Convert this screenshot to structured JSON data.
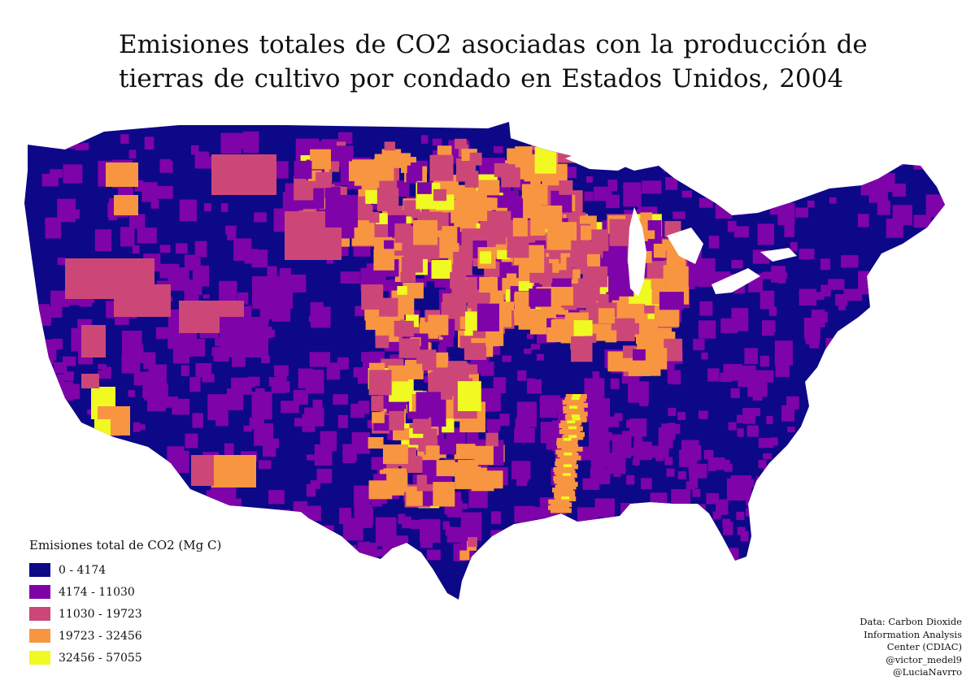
{
  "title_lines": [
    "Emisiones totales de CO2 asociadas con la producción de",
    "tierras de cultivo por condado en Estados Unidos, 2004"
  ],
  "legend": {
    "title": "Emisiones total de CO2 (Mg C)",
    "items": [
      {
        "label": "0 - 4174",
        "color": "#0d0887",
        "min": 0,
        "max": 4174
      },
      {
        "label": "4174 - 11030",
        "color": "#7e03a8",
        "min": 4174,
        "max": 11030
      },
      {
        "label": "11030 - 19723",
        "color": "#cc4778",
        "min": 11030,
        "max": 19723
      },
      {
        "label": "19723 - 32456",
        "color": "#f89540",
        "min": 19723,
        "max": 32456
      },
      {
        "label": "32456 - 57055",
        "color": "#f0f921",
        "min": 32456,
        "max": 57055
      }
    ]
  },
  "credits": [
    "Data: Carbon Dioxide",
    "Information Analysis",
    "Center (CDIAC)",
    "@victor_medel9",
    "@LuciaNavrro"
  ],
  "colors": {
    "background": "#ffffff",
    "base": "#0d0887",
    "water": "#ffffff"
  }
}
